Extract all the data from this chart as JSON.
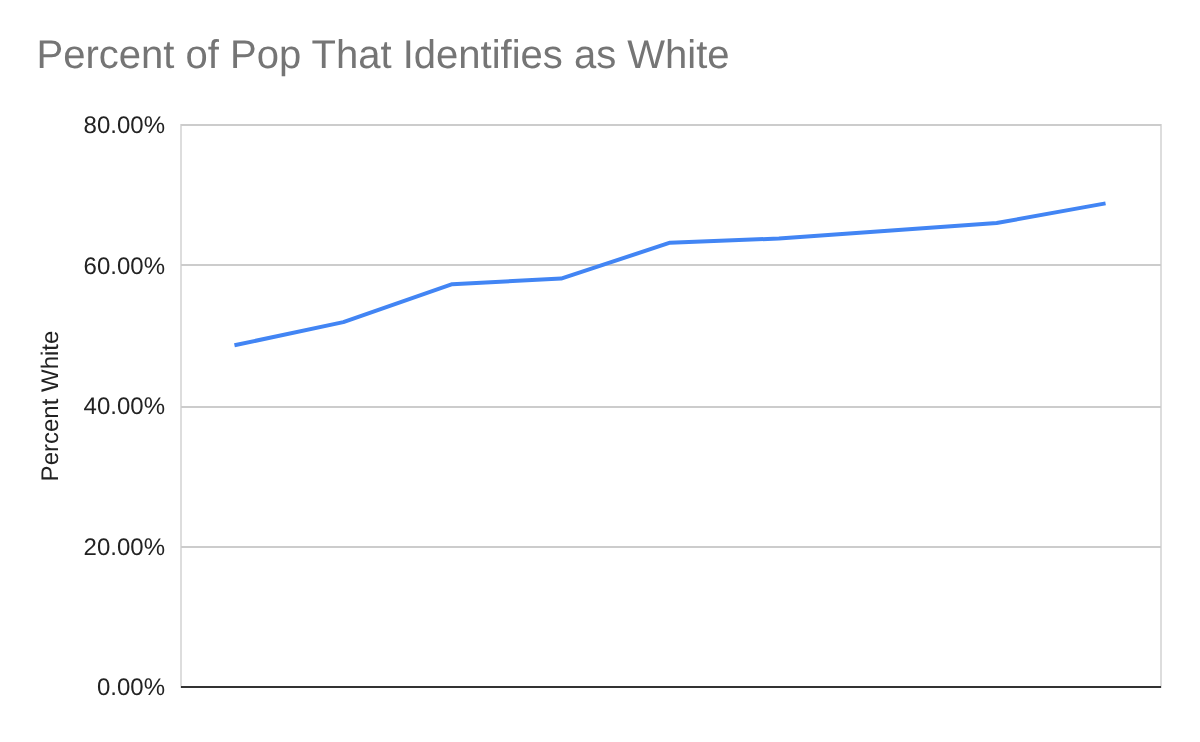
{
  "chart_data": {
    "type": "line",
    "title": "Percent of Pop That Identifies as White",
    "ylabel": "Percent White",
    "categories": [
      null,
      null,
      null,
      null,
      null,
      null,
      null,
      null,
      null
    ],
    "series": [
      {
        "color": "#4285f4",
        "values": [
          48.5,
          51.8,
          57.2,
          58.0,
          63.1,
          63.7,
          64.8,
          65.9,
          68.7
        ]
      }
    ],
    "ylim": [
      0,
      80
    ],
    "yticks": [
      {
        "value": 0,
        "label": "0.00%"
      },
      {
        "value": 20,
        "label": "20.00%"
      },
      {
        "value": 40,
        "label": "40.00%"
      },
      {
        "value": 60,
        "label": "60.00%"
      },
      {
        "value": 80,
        "label": "80.00%"
      }
    ],
    "grid": "y",
    "legend": false,
    "marker": "none",
    "line_style": "solid",
    "tick_labels": "y"
  }
}
